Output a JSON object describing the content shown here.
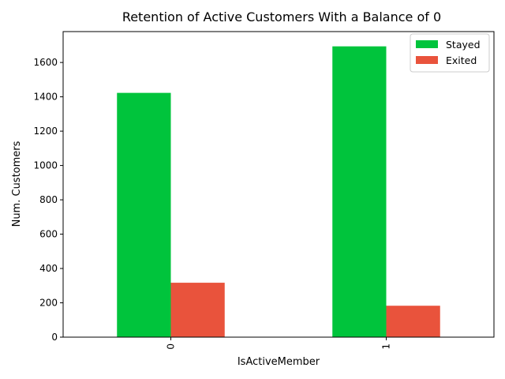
{
  "chart_data": {
    "type": "bar",
    "title": "Retention of Active Customers With a Balance of 0",
    "xlabel": "IsActiveMember",
    "ylabel": "Num. Customers",
    "categories": [
      "0",
      "1"
    ],
    "series": [
      {
        "name": "Stayed",
        "color": "#00c43c",
        "values": [
          1423,
          1694
        ]
      },
      {
        "name": "Exited",
        "color": "#e9533c",
        "values": [
          317,
          183
        ]
      }
    ],
    "ylim": [
      0,
      1780
    ],
    "yticks": [
      0,
      200,
      400,
      600,
      800,
      1000,
      1200,
      1400,
      1600
    ],
    "xtick_rotation": 90,
    "grid": false,
    "legend_position": "top-right"
  }
}
